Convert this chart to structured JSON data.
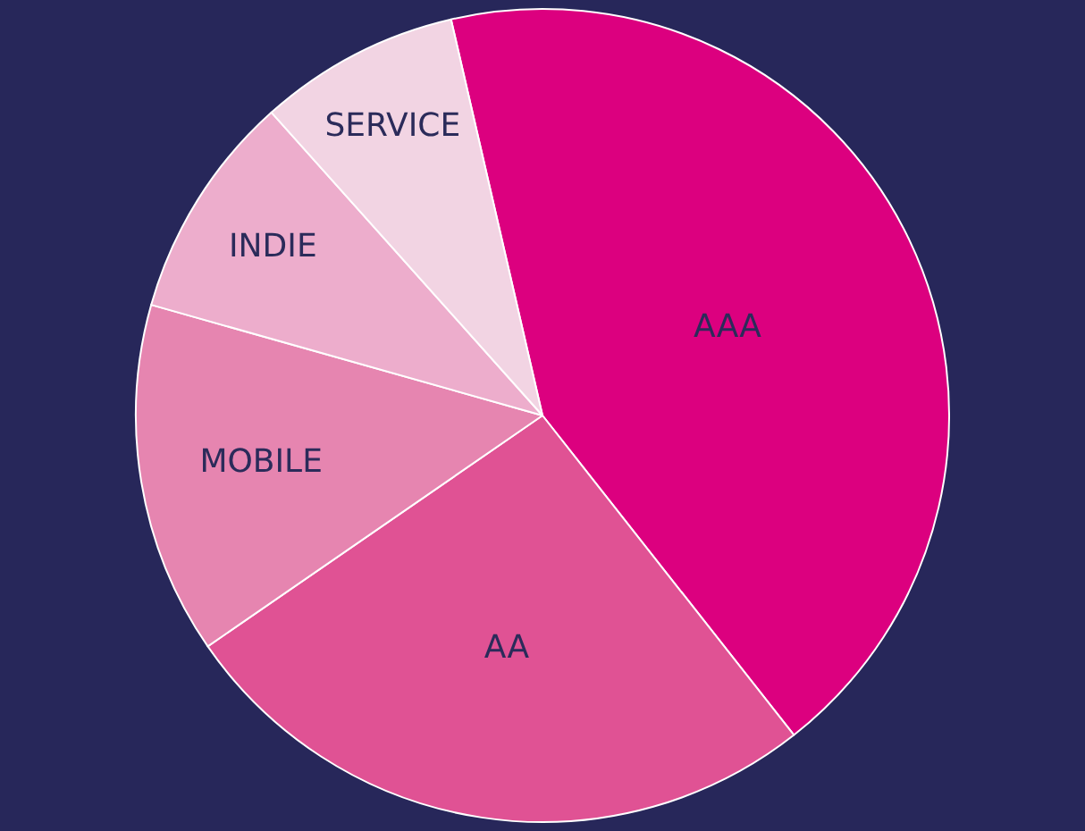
{
  "chart_data": {
    "type": "pie",
    "categories": [
      "AAA",
      "AA",
      "MOBILE",
      "INDIE",
      "SERVICE"
    ],
    "values": [
      43,
      26,
      14,
      9,
      8
    ],
    "colors": [
      "#dc007f",
      "#e05294",
      "#e685b0",
      "#edadcc",
      "#f2d4e3"
    ],
    "legend": false
  }
}
